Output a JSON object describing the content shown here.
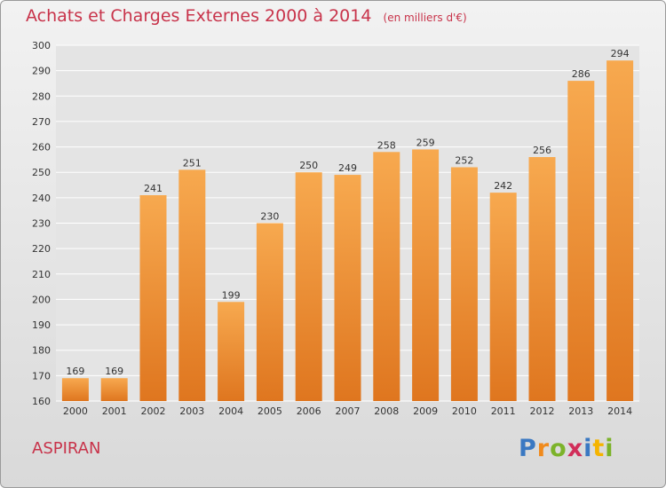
{
  "chart_data": {
    "type": "bar",
    "title": "Achats et Charges Externes 2000 à 2014",
    "subtitle": "(en milliers d'€)",
    "categories": [
      "2000",
      "2001",
      "2002",
      "2003",
      "2004",
      "2005",
      "2006",
      "2007",
      "2008",
      "2009",
      "2010",
      "2011",
      "2012",
      "2013",
      "2014"
    ],
    "values": [
      169,
      169,
      241,
      251,
      199,
      230,
      250,
      249,
      258,
      259,
      252,
      242,
      256,
      286,
      294
    ],
    "ylim": [
      160,
      300
    ],
    "yticks": [
      160,
      170,
      180,
      190,
      200,
      210,
      220,
      230,
      240,
      250,
      260,
      270,
      280,
      290,
      300
    ],
    "grid": true,
    "colors": {
      "bar_light": "#f7a94f",
      "bar_dark": "#e07820",
      "title": "#c8334a"
    }
  },
  "footer": {
    "city": "ASPIRAN",
    "logo": "Proxiti"
  }
}
